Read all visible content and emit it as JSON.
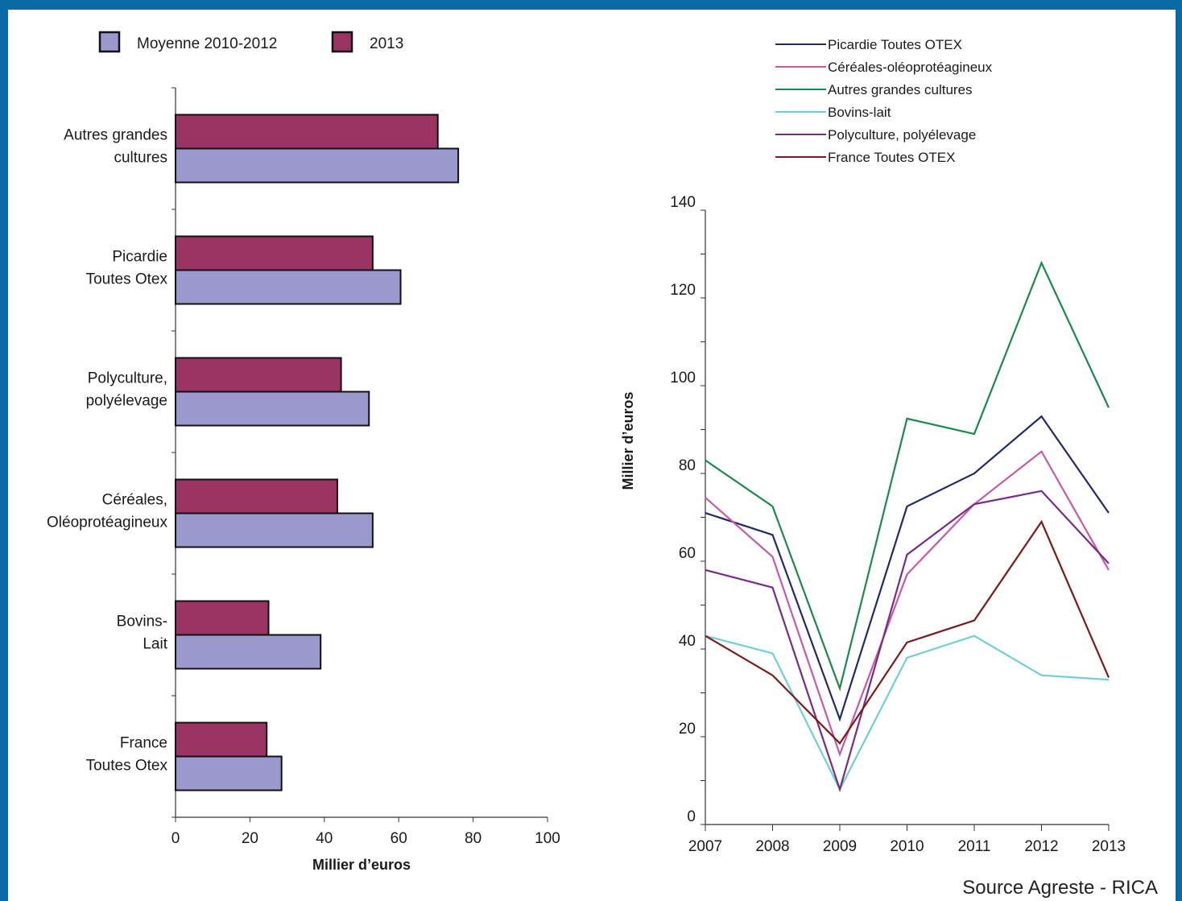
{
  "colors": {
    "border": "#0a6aa6",
    "avg": "#9a98cc",
    "y2013": "#9b3462"
  },
  "source": "Source Agreste - RICA",
  "chart_data": [
    {
      "type": "bar",
      "orientation": "horizontal",
      "categories": [
        [
          "Autres grandes",
          "cultures"
        ],
        [
          "Picardie",
          "Toutes Otex"
        ],
        [
          "Polyculture,",
          "polyélevage"
        ],
        [
          "Céréales,",
          "Oléoprotéagineux"
        ],
        [
          "Bovins-",
          "Lait"
        ],
        [
          "France",
          "Toutes  Otex"
        ]
      ],
      "series": [
        {
          "name": "Moyenne 2010-2012",
          "color": "#9a98cc",
          "values": [
            76,
            60.5,
            52,
            53,
            39,
            28.5
          ]
        },
        {
          "name": "2013",
          "color": "#9b3462",
          "values": [
            70.5,
            53,
            44.5,
            43.5,
            25,
            24.5
          ]
        }
      ],
      "xlabel": "Millier d’euros",
      "xlim": [
        0,
        100
      ],
      "xticks": [
        0,
        20,
        40,
        60,
        80,
        100
      ],
      "legend_position": "top"
    },
    {
      "type": "line",
      "x": [
        "2007",
        "2008",
        "2009",
        "2010",
        "2011",
        "2012",
        "2013"
      ],
      "series": [
        {
          "name": "Picardie Toutes OTEX",
          "color": "#1f2a6b",
          "values": [
            71,
            66,
            24,
            72.5,
            80,
            93,
            71
          ]
        },
        {
          "name": "Céréales-oléoprotéagineux",
          "color": "#c75aa5",
          "values": [
            74.5,
            61,
            16,
            57,
            73,
            85,
            58
          ]
        },
        {
          "name": "Autres grandes cultures",
          "color": "#1a8a4a",
          "values": [
            83,
            72.5,
            31,
            92.5,
            89,
            128,
            95
          ]
        },
        {
          "name": "Bovins-lait",
          "color": "#6ecfd6",
          "values": [
            43,
            39,
            8,
            38,
            43,
            34,
            33
          ]
        },
        {
          "name": "Polyculture, polyélevage",
          "color": "#7a2a86",
          "values": [
            58,
            54,
            8,
            61.5,
            73,
            76,
            59.5
          ]
        },
        {
          "name": "France Toutes OTEX",
          "color": "#7a1a1a",
          "values": [
            43,
            34,
            18.5,
            41.5,
            46.5,
            69,
            33.5
          ]
        }
      ],
      "ylabel": "Millier d’euros",
      "ylim": [
        0,
        140
      ],
      "yticks": [
        0,
        20,
        40,
        60,
        80,
        100,
        120,
        140
      ],
      "legend_position": "top-right"
    }
  ]
}
